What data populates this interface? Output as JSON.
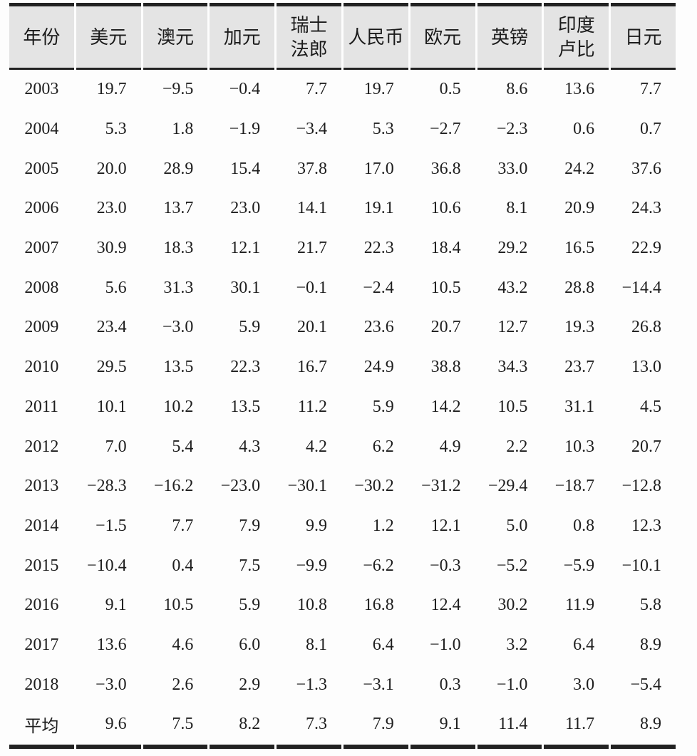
{
  "colors": {
    "header_bg": "#e4e4e4",
    "rule": "#222222",
    "text": "#1e1e1e",
    "page_bg": "#fdfdfd"
  },
  "table": {
    "header": {
      "columns": [
        {
          "id": "year",
          "lines": [
            "年份"
          ]
        },
        {
          "id": "usd",
          "lines": [
            "美元"
          ]
        },
        {
          "id": "aud",
          "lines": [
            "澳元"
          ]
        },
        {
          "id": "cad",
          "lines": [
            "加元"
          ]
        },
        {
          "id": "chf",
          "lines": [
            "瑞士",
            "法郎"
          ]
        },
        {
          "id": "cny",
          "lines": [
            "人民币"
          ]
        },
        {
          "id": "eur",
          "lines": [
            "欧元"
          ]
        },
        {
          "id": "gbp",
          "lines": [
            "英镑"
          ]
        },
        {
          "id": "inr",
          "lines": [
            "印度",
            "卢比"
          ]
        },
        {
          "id": "jpy",
          "lines": [
            "日元"
          ]
        }
      ]
    },
    "rows": [
      {
        "label": "2003",
        "values": [
          "19.7",
          "−9.5",
          "−0.4",
          "7.7",
          "19.7",
          "0.5",
          "8.6",
          "13.6",
          "7.7"
        ]
      },
      {
        "label": "2004",
        "values": [
          "5.3",
          "1.8",
          "−1.9",
          "−3.4",
          "5.3",
          "−2.7",
          "−2.3",
          "0.6",
          "0.7"
        ]
      },
      {
        "label": "2005",
        "values": [
          "20.0",
          "28.9",
          "15.4",
          "37.8",
          "17.0",
          "36.8",
          "33.0",
          "24.2",
          "37.6"
        ]
      },
      {
        "label": "2006",
        "values": [
          "23.0",
          "13.7",
          "23.0",
          "14.1",
          "19.1",
          "10.6",
          "8.1",
          "20.9",
          "24.3"
        ]
      },
      {
        "label": "2007",
        "values": [
          "30.9",
          "18.3",
          "12.1",
          "21.7",
          "22.3",
          "18.4",
          "29.2",
          "16.5",
          "22.9"
        ]
      },
      {
        "label": "2008",
        "values": [
          "5.6",
          "31.3",
          "30.1",
          "−0.1",
          "−2.4",
          "10.5",
          "43.2",
          "28.8",
          "−14.4"
        ]
      },
      {
        "label": "2009",
        "values": [
          "23.4",
          "−3.0",
          "5.9",
          "20.1",
          "23.6",
          "20.7",
          "12.7",
          "19.3",
          "26.8"
        ]
      },
      {
        "label": "2010",
        "values": [
          "29.5",
          "13.5",
          "22.3",
          "16.7",
          "24.9",
          "38.8",
          "34.3",
          "23.7",
          "13.0"
        ]
      },
      {
        "label": "2011",
        "values": [
          "10.1",
          "10.2",
          "13.5",
          "11.2",
          "5.9",
          "14.2",
          "10.5",
          "31.1",
          "4.5"
        ]
      },
      {
        "label": "2012",
        "values": [
          "7.0",
          "5.4",
          "4.3",
          "4.2",
          "6.2",
          "4.9",
          "2.2",
          "10.3",
          "20.7"
        ]
      },
      {
        "label": "2013",
        "values": [
          "−28.3",
          "−16.2",
          "−23.0",
          "−30.1",
          "−30.2",
          "−31.2",
          "−29.4",
          "−18.7",
          "−12.8"
        ]
      },
      {
        "label": "2014",
        "values": [
          "−1.5",
          "7.7",
          "7.9",
          "9.9",
          "1.2",
          "12.1",
          "5.0",
          "0.8",
          "12.3"
        ]
      },
      {
        "label": "2015",
        "values": [
          "−10.4",
          "0.4",
          "7.5",
          "−9.9",
          "−6.2",
          "−0.3",
          "−5.2",
          "−5.9",
          "−10.1"
        ]
      },
      {
        "label": "2016",
        "values": [
          "9.1",
          "10.5",
          "5.9",
          "10.8",
          "16.8",
          "12.4",
          "30.2",
          "11.9",
          "5.8"
        ]
      },
      {
        "label": "2017",
        "values": [
          "13.6",
          "4.6",
          "6.0",
          "8.1",
          "6.4",
          "−1.0",
          "3.2",
          "6.4",
          "8.9"
        ]
      },
      {
        "label": "2018",
        "values": [
          "−3.0",
          "2.6",
          "2.9",
          "−1.3",
          "−3.1",
          "0.3",
          "−1.0",
          "3.0",
          "−5.4"
        ]
      },
      {
        "label": "平均",
        "values": [
          "9.6",
          "7.5",
          "8.2",
          "7.3",
          "7.9",
          "9.1",
          "11.4",
          "11.7",
          "8.9"
        ],
        "is_average": true
      }
    ]
  }
}
